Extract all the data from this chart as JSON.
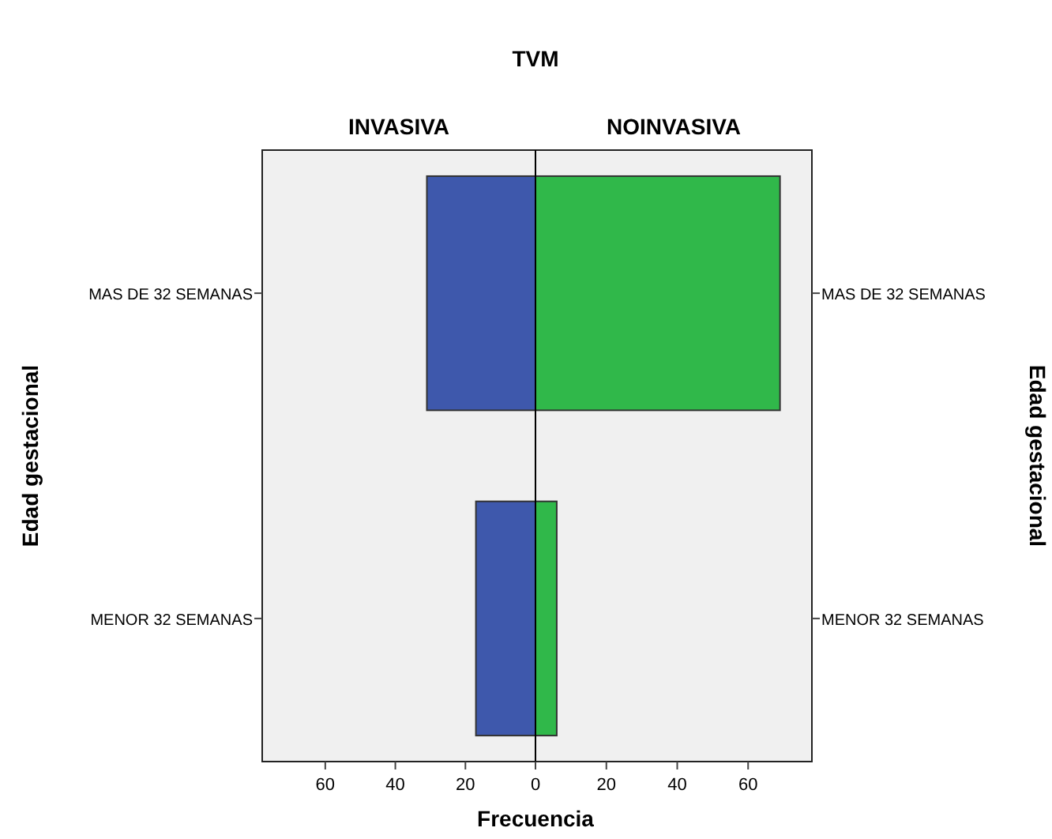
{
  "chart_data": [
    {
      "type": "bar",
      "orientation": "horizontal",
      "title": "TVM",
      "subtitle": "INVASIVA",
      "xlabel": "Frecuencia",
      "ylabel": "Edad gestacional",
      "categories": [
        "MAS DE 32 SEMANAS",
        "MENOR 32 SEMANAS"
      ],
      "values": [
        31,
        17
      ],
      "color": "#3e58ac",
      "xlim": [
        78,
        0
      ],
      "xticks": [
        60,
        40,
        20,
        {
          "value": 0,
          "label": null
        }
      ],
      "grid": false
    },
    {
      "type": "bar",
      "orientation": "horizontal",
      "subtitle": "NOINVASIVA",
      "ylabel": "Edad gestacional",
      "categories": [
        "MAS DE 32 SEMANAS",
        "MENOR 32 SEMANAS"
      ],
      "values": [
        69,
        6
      ],
      "color": "#30b84a",
      "xlim": [
        0,
        78
      ],
      "xticks": [
        0,
        20,
        40,
        60
      ],
      "grid": false
    }
  ]
}
